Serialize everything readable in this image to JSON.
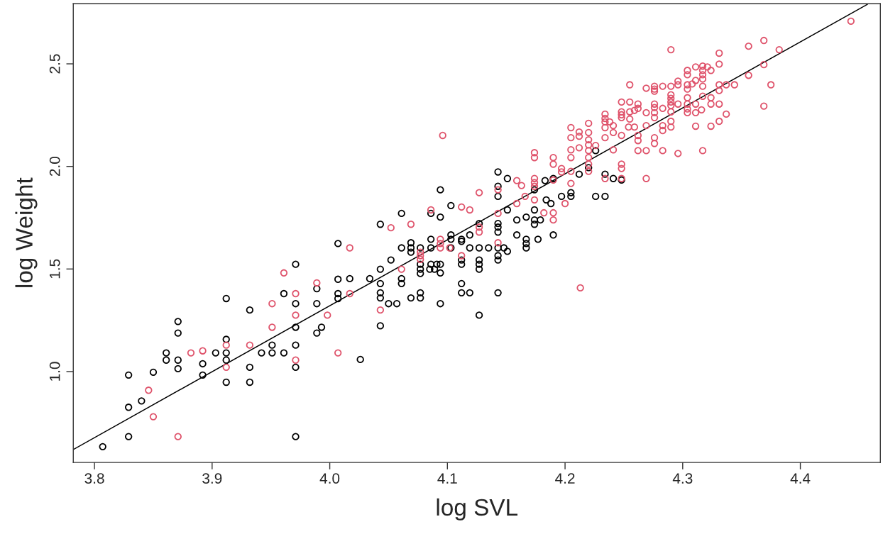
{
  "chart_data": {
    "type": "scatter",
    "xlabel": "log SVL",
    "ylabel": "log Weight",
    "xlim": [
      3.782,
      4.468
    ],
    "ylim": [
      0.557,
      2.793
    ],
    "xticks": [
      3.8,
      3.9,
      {
        "value": 4,
        "label": "4.0"
      },
      4.1,
      4.2,
      4.3,
      4.4
    ],
    "yticks": [
      {
        "value": 1,
        "label": "1.0"
      },
      1.5,
      {
        "value": 2,
        "label": "2.0"
      },
      2.5
    ],
    "marker": "circle",
    "grid": false,
    "series": [
      {
        "color": "#000000",
        "x": [
          3.807,
          3.829,
          3.829,
          3.829,
          3.84,
          3.85,
          3.861,
          3.861,
          3.871,
          3.871,
          3.871,
          3.871,
          3.892,
          3.892,
          3.903,
          3.912,
          3.912,
          3.912,
          3.912,
          3.912,
          3.932,
          3.932,
          3.932,
          3.942,
          3.951,
          3.951,
          3.961,
          3.961,
          3.971,
          3.971,
          3.971,
          3.971,
          3.971,
          3.971,
          3.989,
          3.989,
          3.989,
          3.993,
          4.007,
          4.007,
          4.007,
          4.007,
          4.017,
          4.026,
          4.034,
          4.043,
          4.043,
          4.043,
          4.043,
          4.043,
          4.043,
          4.05,
          4.057,
          4.052,
          4.061,
          4.061,
          4.061,
          4.061,
          4.069,
          4.069,
          4.069,
          4.069,
          4.077,
          4.077,
          4.077,
          4.077,
          4.077,
          4.077,
          4.086,
          4.086,
          4.086,
          4.086,
          4.085,
          4.089,
          4.091,
          4.094,
          4.094,
          4.094,
          4.094,
          4.094,
          4.103,
          4.103,
          4.103,
          4.103,
          4.112,
          4.112,
          4.112,
          4.112,
          4.112,
          4.112,
          4.119,
          4.119,
          4.119,
          4.127,
          4.127,
          4.127,
          4.127,
          4.127,
          4.127,
          4.135,
          4.143,
          4.143,
          4.143,
          4.143,
          4.143,
          4.143,
          4.143,
          4.143,
          4.143,
          4.143,
          4.148,
          4.151,
          4.151,
          4.151,
          4.159,
          4.159,
          4.167,
          4.167,
          4.167,
          4.167,
          4.174,
          4.174,
          4.174,
          4.174,
          4.177,
          4.179,
          4.183,
          4.184,
          4.188,
          4.19,
          4.19,
          4.197,
          4.205,
          4.205,
          4.212,
          4.22,
          4.226,
          4.226,
          4.234,
          4.234,
          4.241,
          4.248
        ],
        "values": [
          0.634,
          0.983,
          0.826,
          0.683,
          0.857,
          0.997,
          1.091,
          1.056,
          1.244,
          1.188,
          1.056,
          1.014,
          1.038,
          0.983,
          1.091,
          1.356,
          1.157,
          1.091,
          1.056,
          0.948,
          1.3,
          1.021,
          0.948,
          1.091,
          1.129,
          1.091,
          1.091,
          1.38,
          1.523,
          1.331,
          1.216,
          1.129,
          1.021,
          0.683,
          1.404,
          1.331,
          1.188,
          1.216,
          1.624,
          1.45,
          1.38,
          1.356,
          1.453,
          1.059,
          1.453,
          1.718,
          1.499,
          1.429,
          1.384,
          1.359,
          1.223,
          1.331,
          1.331,
          1.544,
          1.771,
          1.603,
          1.453,
          1.429,
          1.628,
          1.603,
          1.582,
          1.359,
          1.603,
          1.523,
          1.499,
          1.478,
          1.384,
          1.359,
          1.771,
          1.645,
          1.603,
          1.523,
          1.499,
          1.499,
          1.523,
          1.523,
          1.481,
          1.886,
          1.753,
          1.331,
          1.809,
          1.666,
          1.645,
          1.603,
          1.645,
          1.635,
          1.544,
          1.523,
          1.429,
          1.384,
          1.666,
          1.603,
          1.384,
          1.722,
          1.603,
          1.544,
          1.523,
          1.499,
          1.275,
          1.603,
          1.973,
          1.903,
          1.854,
          1.722,
          1.704,
          1.68,
          1.603,
          1.565,
          1.544,
          1.384,
          1.603,
          1.941,
          1.788,
          1.586,
          1.739,
          1.666,
          1.753,
          1.645,
          1.624,
          1.603,
          1.886,
          1.788,
          1.739,
          1.718,
          1.645,
          1.739,
          1.931,
          1.837,
          1.819,
          1.941,
          1.666,
          1.854,
          1.872,
          1.854,
          1.962,
          1.994,
          2.077,
          1.854,
          1.962,
          1.854,
          1.941,
          1.934
        ]
      },
      {
        "color": "#df536b",
        "x": [
          3.846,
          3.85,
          3.871,
          3.882,
          3.892,
          3.912,
          3.912,
          3.932,
          3.951,
          3.951,
          3.961,
          3.971,
          3.971,
          3.971,
          3.989,
          3.998,
          4.007,
          4.017,
          4.017,
          4.043,
          4.052,
          4.061,
          4.069,
          4.077,
          4.077,
          4.077,
          4.086,
          4.094,
          4.094,
          4.094,
          4.096,
          4.102,
          4.112,
          4.112,
          4.119,
          4.127,
          4.127,
          4.127,
          4.143,
          4.143,
          4.143,
          4.159,
          4.159,
          4.163,
          4.166,
          4.174,
          4.174,
          4.174,
          4.174,
          4.174,
          4.174,
          4.182,
          4.19,
          4.19,
          4.19,
          4.19,
          4.19,
          4.197,
          4.197,
          4.2,
          4.205,
          4.205,
          4.205,
          4.205,
          4.205,
          4.205,
          4.212,
          4.212,
          4.212,
          4.213,
          4.22,
          4.22,
          4.22,
          4.22,
          4.22,
          4.22,
          4.22,
          4.22,
          4.226,
          4.234,
          4.234,
          4.234,
          4.234,
          4.234,
          4.234,
          4.238,
          4.241,
          4.241,
          4.241,
          4.248,
          4.248,
          4.248,
          4.248,
          4.248,
          4.248,
          4.248,
          4.248,
          4.254,
          4.255,
          4.255,
          4.255,
          4.255,
          4.259,
          4.259,
          4.262,
          4.262,
          4.262,
          4.262,
          4.262,
          4.269,
          4.269,
          4.269,
          4.269,
          4.269,
          4.276,
          4.276,
          4.276,
          4.276,
          4.276,
          4.276,
          4.276,
          4.276,
          4.276,
          4.283,
          4.283,
          4.283,
          4.283,
          4.283,
          4.29,
          4.29,
          4.29,
          4.29,
          4.29,
          4.29,
          4.29,
          4.29,
          4.29,
          4.296,
          4.296,
          4.296,
          4.296,
          4.304,
          4.304,
          4.304,
          4.304,
          4.304,
          4.304,
          4.304,
          4.304,
          4.308,
          4.311,
          4.311,
          4.311,
          4.311,
          4.311,
          4.317,
          4.317,
          4.317,
          4.317,
          4.317,
          4.317,
          4.316,
          4.317,
          4.321,
          4.324,
          4.324,
          4.324,
          4.324,
          4.331,
          4.331,
          4.331,
          4.331,
          4.331,
          4.331,
          4.337,
          4.337,
          4.344,
          4.356,
          4.356,
          4.369,
          4.369,
          4.369,
          4.375,
          4.382,
          4.443
        ],
        "values": [
          0.909,
          0.78,
          0.683,
          1.091,
          1.101,
          1.129,
          1.021,
          1.129,
          1.331,
          1.216,
          1.481,
          1.38,
          1.275,
          1.056,
          1.432,
          1.275,
          1.091,
          1.603,
          1.38,
          1.3,
          1.701,
          1.499,
          1.718,
          1.582,
          1.565,
          1.547,
          1.788,
          1.645,
          1.624,
          1.603,
          2.151,
          1.603,
          1.802,
          1.565,
          1.788,
          1.872,
          1.704,
          1.68,
          1.886,
          1.771,
          1.628,
          1.931,
          1.819,
          1.907,
          1.854,
          2.067,
          2.043,
          1.941,
          1.921,
          1.903,
          1.837,
          1.774,
          2.043,
          2.011,
          1.934,
          1.774,
          1.739,
          1.99,
          1.973,
          1.819,
          2.189,
          2.14,
          2.081,
          2.043,
          1.976,
          1.917,
          2.168,
          2.147,
          2.091,
          1.408,
          2.21,
          2.165,
          2.13,
          2.105,
          2.077,
          2.043,
          2.011,
          1.976,
          2.102,
          2.255,
          2.234,
          2.217,
          2.189,
          2.14,
          1.941,
          2.217,
          2.199,
          2.165,
          2.081,
          2.314,
          2.266,
          2.252,
          2.238,
          2.151,
          2.011,
          1.99,
          1.941,
          2.192,
          2.398,
          2.314,
          2.266,
          2.231,
          2.273,
          2.192,
          2.304,
          2.283,
          2.151,
          2.126,
          2.077,
          2.381,
          2.262,
          2.199,
          2.077,
          1.941,
          2.391,
          2.377,
          2.367,
          2.304,
          2.287,
          2.262,
          2.238,
          2.14,
          2.112,
          2.391,
          2.283,
          2.199,
          2.175,
          2.077,
          2.569,
          2.391,
          2.349,
          2.332,
          2.314,
          2.297,
          2.266,
          2.22,
          2.192,
          2.416,
          2.398,
          2.304,
          2.063,
          2.468,
          2.447,
          2.398,
          2.377,
          2.335,
          2.304,
          2.28,
          2.262,
          2.402,
          2.485,
          2.419,
          2.304,
          2.262,
          2.196,
          2.489,
          2.468,
          2.447,
          2.426,
          2.391,
          2.342,
          2.276,
          2.077,
          2.485,
          2.468,
          2.335,
          2.304,
          2.196,
          2.552,
          2.499,
          2.398,
          2.37,
          2.304,
          2.22,
          2.398,
          2.255,
          2.398,
          2.586,
          2.444,
          2.614,
          2.496,
          2.294,
          2.398,
          2.569,
          2.708
        ]
      },
      {
        "type": "line",
        "color": "#000000",
        "marker": "none",
        "x": [
          3.782,
          4.457
        ],
        "values": [
          0.62,
          2.79
        ]
      }
    ]
  }
}
